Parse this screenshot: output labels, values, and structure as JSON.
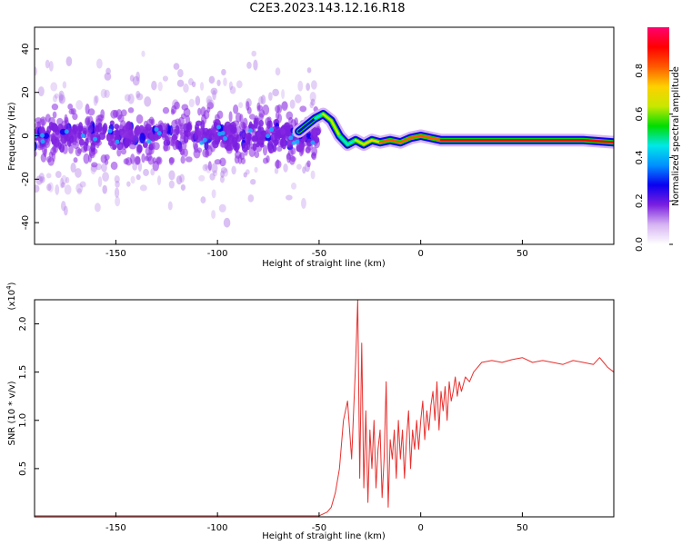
{
  "figure": {
    "title": "C2E3.2023.143.12.16.R18"
  },
  "chart_data": [
    {
      "type": "heatmap",
      "xlabel": "Height of straight line (km)",
      "ylabel": "Frequency (Hz)",
      "xlim": [
        -190,
        95
      ],
      "ylim": [
        -50,
        50
      ],
      "xticks": [
        -150,
        -100,
        -50,
        0,
        50
      ],
      "yticks": [
        -40,
        -20,
        0,
        20,
        40
      ],
      "colorbar": {
        "label": "Normalized spectral amplitude",
        "range": [
          0,
          1
        ],
        "ticks": [
          0.0,
          0.2,
          0.4,
          0.6,
          0.8
        ],
        "colormap": [
          "#ffffff",
          "#d6b4f2",
          "#7a1fe0",
          "#0a00f0",
          "#0090ff",
          "#00e8e8",
          "#00dd00",
          "#c8e800",
          "#ffd000",
          "#ff5a00",
          "#ff0000",
          "#ff0070"
        ]
      },
      "ridge": {
        "x": [
          -60,
          -52,
          -48,
          -44,
          -40,
          -36,
          -32,
          -28,
          -24,
          -20,
          -15,
          -10,
          -5,
          0,
          5,
          10,
          20,
          40,
          60,
          80,
          95
        ],
        "freq": [
          2,
          8,
          10,
          7,
          0,
          -4,
          -2,
          -4,
          -2,
          -3,
          -2,
          -3,
          -1,
          0,
          -1,
          -2,
          -2,
          -2,
          -2,
          -2,
          -3
        ],
        "amplitude": [
          0.2,
          0.3,
          0.6,
          0.7,
          0.5,
          0.45,
          0.5,
          0.7,
          0.75,
          0.75,
          0.8,
          0.8,
          0.8,
          0.75,
          0.8,
          0.85,
          0.9,
          0.95,
          0.95,
          0.95,
          0.9
        ]
      },
      "noise_region_x": [
        -190,
        -50
      ]
    },
    {
      "type": "line",
      "xlabel": "Height of straight line (km)",
      "ylabel": "SNR (10 * v/v)",
      "y_multiplier": "(x10",
      "y_multiplier_exp": "4",
      "y_multiplier_close": ")",
      "xlim": [
        -190,
        95
      ],
      "ylim": [
        0,
        2.25
      ],
      "xticks": [
        -150,
        -100,
        -50,
        0,
        50
      ],
      "yticks": [
        0.5,
        1.0,
        1.5,
        2.0
      ],
      "series": [
        {
          "color": "#e8302e",
          "x": [
            -190,
            -150,
            -100,
            -60,
            -50,
            -46,
            -44,
            -42,
            -40,
            -38,
            -36,
            -34,
            -32,
            -31,
            -30,
            -29,
            -28,
            -27,
            -26,
            -25,
            -24,
            -23,
            -22,
            -21,
            -20,
            -19,
            -18,
            -17,
            -16,
            -15,
            -14,
            -13,
            -12,
            -11,
            -10,
            -9,
            -8,
            -7,
            -6,
            -5,
            -4,
            -3,
            -2,
            -1,
            0,
            1,
            2,
            3,
            4,
            5,
            6,
            7,
            8,
            9,
            10,
            11,
            12,
            13,
            14,
            15,
            16,
            17,
            18,
            19,
            20,
            22,
            24,
            26,
            28,
            30,
            35,
            40,
            45,
            50,
            55,
            60,
            65,
            70,
            75,
            80,
            85,
            88,
            90,
            92,
            95
          ],
          "values": [
            0.01,
            0.01,
            0.01,
            0.01,
            0.01,
            0.05,
            0.1,
            0.25,
            0.5,
            1.0,
            1.2,
            0.6,
            1.6,
            2.25,
            0.4,
            1.8,
            0.3,
            1.1,
            0.15,
            0.9,
            0.5,
            1.0,
            0.3,
            0.7,
            0.9,
            0.2,
            0.6,
            1.4,
            0.1,
            0.8,
            0.6,
            0.9,
            0.4,
            1.0,
            0.6,
            0.9,
            0.4,
            0.8,
            1.1,
            0.5,
            0.9,
            0.7,
            1.0,
            0.7,
            1.0,
            1.2,
            0.8,
            1.1,
            0.9,
            1.15,
            1.3,
            1.0,
            1.4,
            0.9,
            1.3,
            1.1,
            1.35,
            1.0,
            1.4,
            1.2,
            1.3,
            1.45,
            1.25,
            1.4,
            1.3,
            1.45,
            1.4,
            1.5,
            1.55,
            1.6,
            1.62,
            1.6,
            1.63,
            1.65,
            1.6,
            1.62,
            1.6,
            1.58,
            1.62,
            1.6,
            1.58,
            1.65,
            1.6,
            1.55,
            1.5
          ]
        }
      ]
    }
  ]
}
